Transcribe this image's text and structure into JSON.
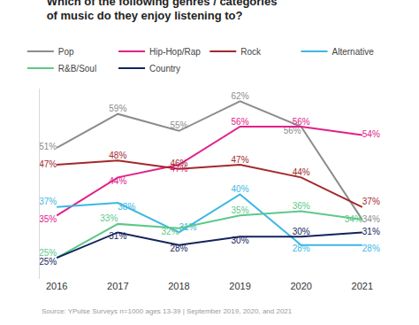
{
  "chart_data": {
    "type": "line",
    "title": "Which of the following genres / categories\nof music do they enjoy listening to?",
    "annotations": [
      "Source: YPulse Surveys n=1000 ages 13-39 | September 2019, 2020, and 2021"
    ],
    "categories": [
      "2016",
      "2017",
      "2018",
      "2019",
      "2020",
      "2021"
    ],
    "series": [
      {
        "name": "Pop",
        "color": "#8c8c8c",
        "values": [
          51,
          59,
          55,
          62,
          56,
          34
        ],
        "value_labels": [
          "51%",
          "59%",
          "55%",
          "62%",
          "56%",
          "34%"
        ]
      },
      {
        "name": "Hip-Hop/Rap",
        "color": "#e0218a",
        "values": [
          35,
          44,
          47,
          56,
          56,
          54
        ],
        "value_labels": [
          "35%",
          "44%",
          "47%",
          "56%",
          "56%",
          "54%"
        ]
      },
      {
        "name": "Rock",
        "color": "#a3282b",
        "values": [
          47,
          48,
          46,
          47,
          44,
          37
        ],
        "value_labels": [
          "47%",
          "48%",
          "46%",
          "47%",
          "44%",
          "37%"
        ]
      },
      {
        "name": "Alternative",
        "color": "#3db7e4",
        "values": [
          37,
          38,
          31,
          40,
          28,
          28
        ],
        "value_labels": [
          "37%",
          "38%",
          "31%",
          "40%",
          "28%",
          "28%"
        ]
      },
      {
        "name": "R&B/Soul",
        "color": "#5ec88a",
        "values": [
          25,
          33,
          32,
          35,
          36,
          34
        ],
        "value_labels": [
          "25%",
          "33%",
          "32%",
          "35%",
          "36%",
          "34%"
        ]
      },
      {
        "name": "Country",
        "color": "#14245c",
        "values": [
          25,
          31,
          28,
          30,
          30,
          31
        ],
        "value_labels": [
          "25%",
          "31%",
          "28%",
          "30%",
          "30%",
          "31%"
        ]
      }
    ],
    "ylim": [
      20,
      65
    ],
    "yticks": [],
    "grid": false,
    "legend": "top",
    "data_labels": true,
    "tick_labels": "x"
  }
}
